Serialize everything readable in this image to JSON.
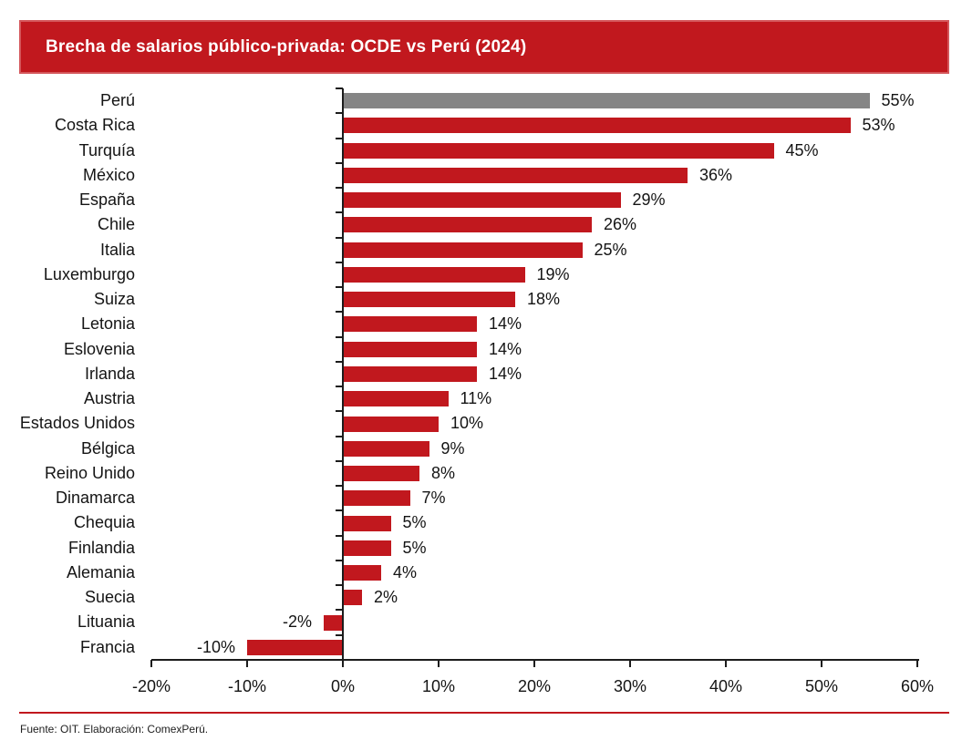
{
  "header": {
    "title": "Brecha de salarios público-privada: OCDE vs Perú (2024)",
    "bar_color": "#c1181e",
    "text_color": "#ffffff"
  },
  "footer": {
    "source": "Fuente: OIT. Elaboración: ComexPerú.",
    "rule_color": "#c1181e"
  },
  "chart_data": {
    "type": "bar",
    "orientation": "horizontal",
    "title": "Brecha de salarios público-privada: OCDE vs Perú (2024)",
    "xlabel": "",
    "ylabel": "",
    "categories": [
      "Perú",
      "Costa Rica",
      "Turquía",
      "México",
      "España",
      "Chile",
      "Italia",
      "Luxemburgo",
      "Suiza",
      "Letonia",
      "Eslovenia",
      "Irlanda",
      "Austria",
      "Estados Unidos",
      "Bélgica",
      "Reino Unido",
      "Dinamarca",
      "Chequia",
      "Finlandia",
      "Alemania",
      "Suecia",
      "Lituania",
      "Francia"
    ],
    "values": [
      55,
      53,
      45,
      36,
      29,
      26,
      25,
      19,
      18,
      14,
      14,
      14,
      11,
      10,
      9,
      8,
      7,
      5,
      5,
      4,
      2,
      -2,
      -10
    ],
    "value_labels": [
      "55%",
      "53%",
      "45%",
      "36%",
      "29%",
      "26%",
      "25%",
      "19%",
      "18%",
      "14%",
      "14%",
      "14%",
      "11%",
      "10%",
      "9%",
      "8%",
      "7%",
      "5%",
      "5%",
      "4%",
      "2%",
      "-2%",
      "-10%"
    ],
    "bar_colors": {
      "default": "#c1181e",
      "highlight": "#858585",
      "highlight_category": "Perú"
    },
    "x_axis": {
      "range": [
        -20,
        60
      ],
      "ticks": [
        -20,
        -10,
        0,
        10,
        20,
        30,
        40,
        50,
        60
      ],
      "tick_labels": [
        "-20%",
        "-10%",
        "0%",
        "10%",
        "20%",
        "30%",
        "40%",
        "50%",
        "60%"
      ]
    },
    "grid": false,
    "legend": false,
    "source": "Fuente: OIT. Elaboración: ComexPerú."
  }
}
